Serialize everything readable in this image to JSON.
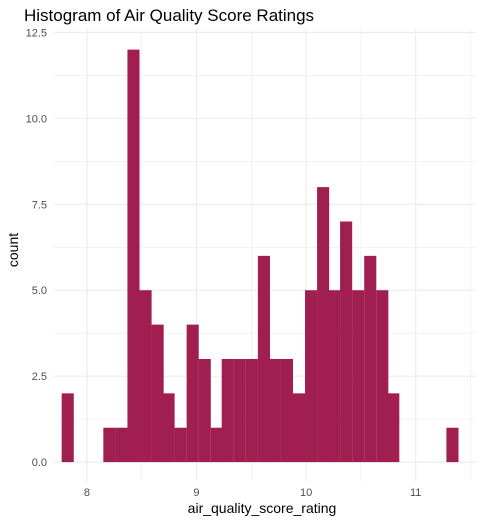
{
  "chart_data": {
    "type": "bar",
    "title": "Histogram of Air Quality Score Ratings",
    "xlabel": "air_quality_score_rating",
    "ylabel": "count",
    "x_ticks": [
      "8",
      "9",
      "10",
      "11"
    ],
    "y_ticks": [
      "0.0",
      "2.5",
      "5.0",
      "7.5",
      "10.0",
      "12.5"
    ],
    "xlim": [
      7.7,
      11.55
    ],
    "ylim": [
      -0.55,
      12.6
    ],
    "bin_width": 0.1077,
    "bins": [
      {
        "start": 7.77,
        "count": 2
      },
      {
        "start": 7.88,
        "count": 0
      },
      {
        "start": 7.98,
        "count": 0
      },
      {
        "start": 8.09,
        "count": 0
      },
      {
        "start": 8.15,
        "count": 1
      },
      {
        "start": 8.26,
        "count": 1
      },
      {
        "start": 8.37,
        "count": 12
      },
      {
        "start": 8.48,
        "count": 5
      },
      {
        "start": 8.59,
        "count": 4
      },
      {
        "start": 8.69,
        "count": 2
      },
      {
        "start": 8.8,
        "count": 1
      },
      {
        "start": 8.91,
        "count": 4
      },
      {
        "start": 9.02,
        "count": 3
      },
      {
        "start": 9.13,
        "count": 1
      },
      {
        "start": 9.23,
        "count": 3
      },
      {
        "start": 9.34,
        "count": 3
      },
      {
        "start": 9.45,
        "count": 3
      },
      {
        "start": 9.56,
        "count": 6
      },
      {
        "start": 9.66,
        "count": 3
      },
      {
        "start": 9.77,
        "count": 3
      },
      {
        "start": 9.88,
        "count": 2
      },
      {
        "start": 9.99,
        "count": 5
      },
      {
        "start": 10.1,
        "count": 8
      },
      {
        "start": 10.2,
        "count": 5
      },
      {
        "start": 10.31,
        "count": 7
      },
      {
        "start": 10.42,
        "count": 5
      },
      {
        "start": 10.53,
        "count": 6
      },
      {
        "start": 10.64,
        "count": 5
      },
      {
        "start": 10.74,
        "count": 2
      },
      {
        "start": 10.85,
        "count": 0
      },
      {
        "start": 10.96,
        "count": 0
      },
      {
        "start": 11.07,
        "count": 0
      },
      {
        "start": 11.17,
        "count": 0
      },
      {
        "start": 11.28,
        "count": 1
      }
    ],
    "bar_color": "#a01f50",
    "grid": true,
    "gridline_color": "#ebebeb",
    "legend": "none"
  }
}
